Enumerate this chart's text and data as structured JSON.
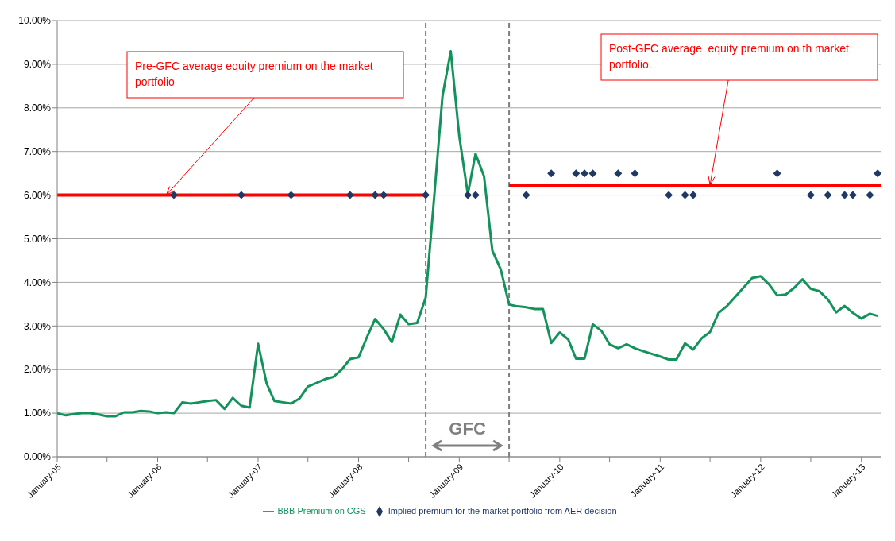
{
  "chart_data": {
    "type": "line",
    "xlim": [
      "2005-01",
      "2013-03-15"
    ],
    "ylim": [
      0,
      10
    ],
    "yticks": [
      {
        "value": 0,
        "label": "0.00%"
      },
      {
        "value": 1,
        "label": "1.00%"
      },
      {
        "value": 2,
        "label": "2.00%"
      },
      {
        "value": 3,
        "label": "3.00%"
      },
      {
        "value": 4,
        "label": "4.00%"
      },
      {
        "value": 5,
        "label": "5.00%"
      },
      {
        "value": 6,
        "label": "6.00%"
      },
      {
        "value": 7,
        "label": "7.00%"
      },
      {
        "value": 8,
        "label": "8.00%"
      },
      {
        "value": 9,
        "label": "9.00%"
      },
      {
        "value": 10,
        "label": "10.00%"
      }
    ],
    "xticks": [
      {
        "value": "2005-01",
        "label": "January-05"
      },
      {
        "value": "2005-07",
        "label": null
      },
      {
        "value": "2006-01",
        "label": "January-06"
      },
      {
        "value": "2006-07",
        "label": null
      },
      {
        "value": "2007-01",
        "label": "January-07"
      },
      {
        "value": "2007-07",
        "label": null
      },
      {
        "value": "2008-01",
        "label": "January-08"
      },
      {
        "value": "2008-07",
        "label": null
      },
      {
        "value": "2009-01",
        "label": "January-09"
      },
      {
        "value": "2009-07",
        "label": null
      },
      {
        "value": "2010-01",
        "label": "January-10"
      },
      {
        "value": "2010-07",
        "label": null
      },
      {
        "value": "2011-01",
        "label": "January-11"
      },
      {
        "value": "2011-07",
        "label": null
      },
      {
        "value": "2012-01",
        "label": "January-12"
      },
      {
        "value": "2012-07",
        "label": null
      },
      {
        "value": "2013-01",
        "label": "January-13"
      }
    ],
    "grid": "y",
    "legend": "bottom",
    "series": [
      {
        "name": "BBB Premium on CGS",
        "color": "#13925b",
        "marker": "none",
        "x": [
          "2005-01",
          "2005-02",
          "2005-03",
          "2005-04",
          "2005-05",
          "2005-06",
          "2005-07",
          "2005-08",
          "2005-09",
          "2005-10",
          "2005-11",
          "2005-12",
          "2006-01",
          "2006-02",
          "2006-03",
          "2006-04",
          "2006-05",
          "2006-06",
          "2006-07",
          "2006-08",
          "2006-09",
          "2006-10",
          "2006-11",
          "2006-12",
          "2007-01",
          "2007-02",
          "2007-03",
          "2007-04",
          "2007-05",
          "2007-06",
          "2007-07",
          "2007-08",
          "2007-09",
          "2007-10",
          "2007-11",
          "2007-12",
          "2008-01",
          "2008-02",
          "2008-03",
          "2008-04",
          "2008-05",
          "2008-06",
          "2008-07",
          "2008-08",
          "2008-09",
          "2008-10",
          "2008-11",
          "2008-12",
          "2009-01",
          "2009-02",
          "2009-03",
          "2009-04",
          "2009-05",
          "2009-06",
          "2009-07",
          "2009-08",
          "2009-09",
          "2009-10",
          "2009-11",
          "2009-12",
          "2010-01",
          "2010-02",
          "2010-03",
          "2010-04",
          "2010-05",
          "2010-06",
          "2010-07",
          "2010-08",
          "2010-09",
          "2010-10",
          "2010-11",
          "2010-12",
          "2011-01",
          "2011-02",
          "2011-03",
          "2011-04",
          "2011-05",
          "2011-06",
          "2011-07",
          "2011-08",
          "2011-09",
          "2011-10",
          "2011-11",
          "2011-12",
          "2012-01",
          "2012-02",
          "2012-03",
          "2012-04",
          "2012-05",
          "2012-06",
          "2012-07",
          "2012-08",
          "2012-09",
          "2012-10",
          "2012-11",
          "2012-12",
          "2013-01",
          "2013-02",
          "2013-03"
        ],
        "values": [
          1.0,
          0.95,
          0.98,
          1.0,
          1.0,
          0.97,
          0.93,
          0.93,
          1.02,
          1.02,
          1.05,
          1.04,
          1.0,
          1.02,
          1.0,
          1.25,
          1.22,
          1.25,
          1.28,
          1.3,
          1.1,
          1.35,
          1.17,
          1.13,
          2.59,
          1.68,
          1.28,
          1.25,
          1.22,
          1.34,
          1.61,
          1.69,
          1.78,
          1.83,
          2.0,
          2.24,
          2.28,
          2.75,
          3.16,
          2.93,
          2.63,
          3.26,
          3.04,
          3.07,
          3.65,
          5.9,
          8.27,
          9.3,
          7.35,
          6.02,
          6.95,
          6.43,
          4.73,
          4.29,
          3.49,
          3.45,
          3.43,
          3.39,
          3.39,
          2.61,
          2.85,
          2.69,
          2.25,
          2.25,
          3.04,
          2.89,
          2.58,
          2.49,
          2.58,
          2.49,
          2.42,
          2.36,
          2.3,
          2.23,
          2.23,
          2.6,
          2.46,
          2.72,
          2.86,
          3.3,
          3.46,
          3.67,
          3.89,
          4.1,
          4.14,
          3.95,
          3.7,
          3.72,
          3.87,
          4.07,
          3.85,
          3.8,
          3.61,
          3.31,
          3.46,
          3.3,
          3.17,
          3.28,
          3.23
        ]
      },
      {
        "type": "line",
        "color": "#ff0000",
        "marker": "none",
        "x": [
          "2005-01",
          "2008-09"
        ],
        "values": [
          6,
          6
        ]
      },
      {
        "type": "line",
        "color": "#ff0000",
        "marker": "none",
        "x": [
          "2009-07",
          "2013-03-15"
        ],
        "values": [
          6.23,
          6.23
        ]
      },
      {
        "name": "Implied premium for the market portfolio from AER decision",
        "type": "scatter",
        "color": "#1f3864",
        "marker": "diamond",
        "x": [
          "2006-03",
          "2006-11",
          "2007-05",
          "2007-12",
          "2008-03",
          "2008-04",
          "2008-09",
          "2009-02",
          "2009-03",
          "2009-09",
          "2009-12",
          "2010-03",
          "2010-04",
          "2010-05",
          "2010-08",
          "2010-10",
          "2011-02",
          "2011-04",
          "2011-05",
          "2012-03",
          "2012-07",
          "2012-09",
          "2012-11",
          "2012-12",
          "2013-02",
          "2013-03"
        ],
        "values": [
          6,
          6,
          6,
          6,
          6,
          6,
          6,
          6,
          6,
          6,
          6.5,
          6.5,
          6.5,
          6.5,
          6.5,
          6.5,
          6,
          6,
          6,
          6.5,
          6,
          6,
          6,
          6,
          6,
          6.5
        ]
      }
    ],
    "ref_lines": [
      {
        "axis": "x",
        "value": "2008-09",
        "color": "#7f7f7f",
        "line_style": "dashed"
      },
      {
        "axis": "x",
        "value": "2009-07",
        "color": "#7f7f7f",
        "line_style": "dashed"
      }
    ],
    "annotations": [
      {
        "text": "Pre-GFC average equity premium on the market portfolio",
        "x": "2006-02",
        "y": 6
      },
      {
        "text": "Post-GFC average  equity premium on th market portfolio.",
        "x": "2011-07",
        "y": 6.23
      },
      "GFC"
    ]
  }
}
